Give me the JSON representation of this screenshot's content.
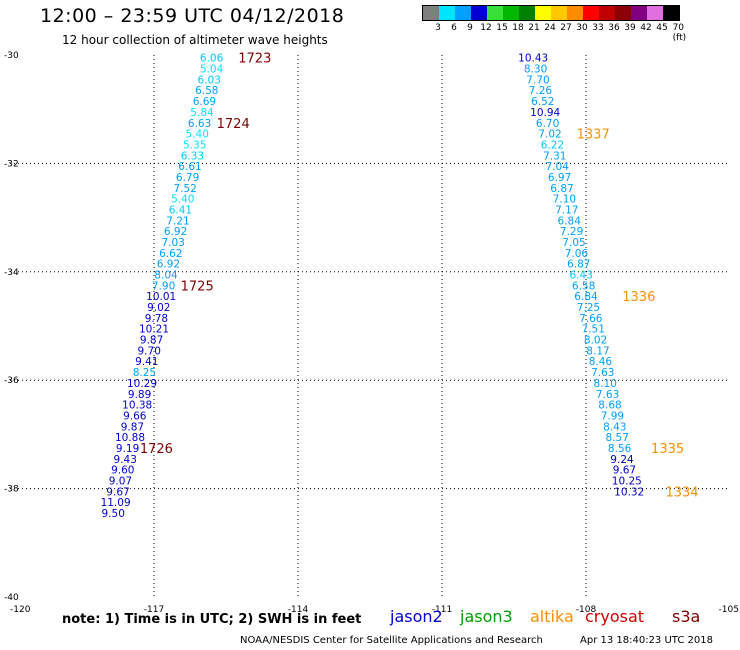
{
  "header": {
    "title": "12:00 – 23:59 UTC 04/12/2018",
    "subtitle": "12 hour collection of altimeter wave heights"
  },
  "color_scale": {
    "labels": [
      "3",
      "6",
      "9",
      "12",
      "15",
      "18",
      "21",
      "24",
      "27",
      "30",
      "33",
      "36",
      "39",
      "42",
      "45",
      "70 (ft)"
    ],
    "colors": [
      "#7f7f7f",
      "#00e5ff",
      "#00a0ff",
      "#0000d0",
      "#38e038",
      "#00b800",
      "#008000",
      "#ffff00",
      "#ffc800",
      "#ff8c00",
      "#ff0000",
      "#c00000",
      "#8b0000",
      "#800080",
      "#e070e0",
      "#000000"
    ]
  },
  "footer": {
    "note": "note: 1) Time is in UTC; 2) SWH is in feet",
    "credit": "NOAA/NESDIS Center for Satellite Applications and Research",
    "timestamp": "Apr 13 18:40:23 UTC 2018"
  },
  "legend": [
    {
      "name": "jason2",
      "color": "#0000d0"
    },
    {
      "name": "jason3",
      "color": "#00a000"
    },
    {
      "name": "altika",
      "color": "#ff9000"
    },
    {
      "name": "cryosat",
      "color": "#d00000"
    },
    {
      "name": "s3a",
      "color": "#800000"
    }
  ],
  "chart_data": {
    "type": "scatter",
    "xlim": [
      -120,
      -105
    ],
    "ylim": [
      -40,
      -30
    ],
    "x_ticks": [
      "-120",
      "-117",
      "-114",
      "-111",
      "-108",
      "-105"
    ],
    "y_ticks": [
      "-30",
      "-32",
      "-34",
      "-36",
      "-38",
      "-40"
    ],
    "grid": true,
    "track_a": [
      {
        "lon": -115.8,
        "lat": -30.05,
        "v": "6.06",
        "c": "#00c8ff"
      },
      {
        "lon": -115.8,
        "lat": -30.25,
        "v": "5.04",
        "c": "#00e5ff"
      },
      {
        "lon": -115.85,
        "lat": -30.45,
        "v": "6.03",
        "c": "#00c8ff"
      },
      {
        "lon": -115.9,
        "lat": -30.65,
        "v": "6.58",
        "c": "#00a0ff"
      },
      {
        "lon": -115.95,
        "lat": -30.85,
        "v": "6.69",
        "c": "#00a0ff"
      },
      {
        "lon": -116.0,
        "lat": -31.05,
        "v": "5.84",
        "c": "#00e5ff"
      },
      {
        "lon": -116.05,
        "lat": -31.25,
        "v": "6.63",
        "c": "#00a0ff"
      },
      {
        "lon": -116.1,
        "lat": -31.45,
        "v": "5.40",
        "c": "#00e5ff"
      },
      {
        "lon": -116.15,
        "lat": -31.65,
        "v": "5.35",
        "c": "#00e5ff"
      },
      {
        "lon": -116.2,
        "lat": -31.85,
        "v": "6.33",
        "c": "#00c8ff"
      },
      {
        "lon": -116.25,
        "lat": -32.05,
        "v": "6.61",
        "c": "#00a0ff"
      },
      {
        "lon": -116.3,
        "lat": -32.25,
        "v": "6.79",
        "c": "#00a0ff"
      },
      {
        "lon": -116.35,
        "lat": -32.45,
        "v": "7.52",
        "c": "#00a0ff"
      },
      {
        "lon": -116.4,
        "lat": -32.65,
        "v": "5.40",
        "c": "#00e5ff"
      },
      {
        "lon": -116.45,
        "lat": -32.85,
        "v": "6.41",
        "c": "#00c8ff"
      },
      {
        "lon": -116.5,
        "lat": -33.05,
        "v": "7.21",
        "c": "#00a0ff"
      },
      {
        "lon": -116.55,
        "lat": -33.25,
        "v": "6.92",
        "c": "#00a0ff"
      },
      {
        "lon": -116.6,
        "lat": -33.45,
        "v": "7.03",
        "c": "#00a0ff"
      },
      {
        "lon": -116.65,
        "lat": -33.65,
        "v": "6.62",
        "c": "#00a0ff"
      },
      {
        "lon": -116.7,
        "lat": -33.85,
        "v": "6.92",
        "c": "#00a0ff"
      },
      {
        "lon": -116.75,
        "lat": -34.05,
        "v": "8.04",
        "c": "#00a0ff"
      },
      {
        "lon": -116.8,
        "lat": -34.25,
        "v": "7.90",
        "c": "#00a0ff"
      },
      {
        "lon": -116.85,
        "lat": -34.45,
        "v": "10.01",
        "c": "#0000d0"
      },
      {
        "lon": -116.9,
        "lat": -34.65,
        "v": "9.02",
        "c": "#0000d0"
      },
      {
        "lon": -116.95,
        "lat": -34.85,
        "v": "9.78",
        "c": "#0000d0"
      },
      {
        "lon": -117.0,
        "lat": -35.05,
        "v": "10.21",
        "c": "#0000d0"
      },
      {
        "lon": -117.05,
        "lat": -35.25,
        "v": "9.87",
        "c": "#0000d0"
      },
      {
        "lon": -117.1,
        "lat": -35.45,
        "v": "9.70",
        "c": "#0000d0"
      },
      {
        "lon": -117.15,
        "lat": -35.65,
        "v": "9.41",
        "c": "#0000d0"
      },
      {
        "lon": -117.2,
        "lat": -35.85,
        "v": "8.25",
        "c": "#00a0ff"
      },
      {
        "lon": -117.25,
        "lat": -36.05,
        "v": "10.29",
        "c": "#0000d0"
      },
      {
        "lon": -117.3,
        "lat": -36.25,
        "v": "9.89",
        "c": "#0000d0"
      },
      {
        "lon": -117.35,
        "lat": -36.45,
        "v": "10.38",
        "c": "#0000d0"
      },
      {
        "lon": -117.4,
        "lat": -36.65,
        "v": "9.66",
        "c": "#0000d0"
      },
      {
        "lon": -117.45,
        "lat": -36.85,
        "v": "9.87",
        "c": "#0000d0"
      },
      {
        "lon": -117.5,
        "lat": -37.05,
        "v": "10.88",
        "c": "#0000d0"
      },
      {
        "lon": -117.55,
        "lat": -37.25,
        "v": "9.19",
        "c": "#0000d0"
      },
      {
        "lon": -117.6,
        "lat": -37.45,
        "v": "9.43",
        "c": "#0000d0"
      },
      {
        "lon": -117.65,
        "lat": -37.65,
        "v": "9.60",
        "c": "#0000d0"
      },
      {
        "lon": -117.7,
        "lat": -37.85,
        "v": "9.07",
        "c": "#0000d0"
      },
      {
        "lon": -117.75,
        "lat": -38.05,
        "v": "9.67",
        "c": "#0000d0"
      },
      {
        "lon": -117.8,
        "lat": -38.25,
        "v": "11.09",
        "c": "#0000d0"
      },
      {
        "lon": -117.85,
        "lat": -38.45,
        "v": "9.50",
        "c": "#0000d0"
      }
    ],
    "track_b": [
      {
        "lon": -109.1,
        "lat": -30.05,
        "v": "10.43",
        "c": "#0000d0"
      },
      {
        "lon": -109.05,
        "lat": -30.25,
        "v": "8.30",
        "c": "#00a0ff"
      },
      {
        "lon": -109.0,
        "lat": -30.45,
        "v": "7.70",
        "c": "#00a0ff"
      },
      {
        "lon": -108.95,
        "lat": -30.65,
        "v": "7.26",
        "c": "#00a0ff"
      },
      {
        "lon": -108.9,
        "lat": -30.85,
        "v": "6.52",
        "c": "#00a0ff"
      },
      {
        "lon": -108.85,
        "lat": -31.05,
        "v": "10.94",
        "c": "#0000d0"
      },
      {
        "lon": -108.8,
        "lat": -31.25,
        "v": "6.70",
        "c": "#00a0ff"
      },
      {
        "lon": -108.75,
        "lat": -31.45,
        "v": "7.02",
        "c": "#00a0ff"
      },
      {
        "lon": -108.7,
        "lat": -31.65,
        "v": "6.22",
        "c": "#00c8ff"
      },
      {
        "lon": -108.65,
        "lat": -31.85,
        "v": "7.31",
        "c": "#00a0ff"
      },
      {
        "lon": -108.6,
        "lat": -32.05,
        "v": "7.04",
        "c": "#00a0ff"
      },
      {
        "lon": -108.55,
        "lat": -32.25,
        "v": "6.97",
        "c": "#00a0ff"
      },
      {
        "lon": -108.5,
        "lat": -32.45,
        "v": "6.87",
        "c": "#00a0ff"
      },
      {
        "lon": -108.45,
        "lat": -32.65,
        "v": "7.10",
        "c": "#00a0ff"
      },
      {
        "lon": -108.4,
        "lat": -32.85,
        "v": "7.17",
        "c": "#00a0ff"
      },
      {
        "lon": -108.35,
        "lat": -33.05,
        "v": "6.84",
        "c": "#00a0ff"
      },
      {
        "lon": -108.3,
        "lat": -33.25,
        "v": "7.29",
        "c": "#00a0ff"
      },
      {
        "lon": -108.25,
        "lat": -33.45,
        "v": "7.05",
        "c": "#00a0ff"
      },
      {
        "lon": -108.2,
        "lat": -33.65,
        "v": "7.06",
        "c": "#00a0ff"
      },
      {
        "lon": -108.15,
        "lat": -33.85,
        "v": "6.87",
        "c": "#00a0ff"
      },
      {
        "lon": -108.1,
        "lat": -34.05,
        "v": "6.43",
        "c": "#00c8ff"
      },
      {
        "lon": -108.05,
        "lat": -34.25,
        "v": "6.58",
        "c": "#00a0ff"
      },
      {
        "lon": -108.0,
        "lat": -34.45,
        "v": "6.84",
        "c": "#00a0ff"
      },
      {
        "lon": -107.95,
        "lat": -34.65,
        "v": "7.25",
        "c": "#00a0ff"
      },
      {
        "lon": -107.9,
        "lat": -34.85,
        "v": "7.66",
        "c": "#00a0ff"
      },
      {
        "lon": -107.85,
        "lat": -35.05,
        "v": "7.51",
        "c": "#00a0ff"
      },
      {
        "lon": -107.8,
        "lat": -35.25,
        "v": "8.02",
        "c": "#00a0ff"
      },
      {
        "lon": -107.75,
        "lat": -35.45,
        "v": "8.17",
        "c": "#00a0ff"
      },
      {
        "lon": -107.7,
        "lat": -35.65,
        "v": "8.46",
        "c": "#00a0ff"
      },
      {
        "lon": -107.65,
        "lat": -35.85,
        "v": "7.63",
        "c": "#00a0ff"
      },
      {
        "lon": -107.6,
        "lat": -36.05,
        "v": "8.10",
        "c": "#00a0ff"
      },
      {
        "lon": -107.55,
        "lat": -36.25,
        "v": "7.63",
        "c": "#00a0ff"
      },
      {
        "lon": -107.5,
        "lat": -36.45,
        "v": "8.68",
        "c": "#00a0ff"
      },
      {
        "lon": -107.45,
        "lat": -36.65,
        "v": "7.99",
        "c": "#00a0ff"
      },
      {
        "lon": -107.4,
        "lat": -36.85,
        "v": "8.43",
        "c": "#00a0ff"
      },
      {
        "lon": -107.35,
        "lat": -37.05,
        "v": "8.57",
        "c": "#00a0ff"
      },
      {
        "lon": -107.3,
        "lat": -37.25,
        "v": "8.56",
        "c": "#00a0ff"
      },
      {
        "lon": -107.25,
        "lat": -37.45,
        "v": "9.24",
        "c": "#0000d0"
      },
      {
        "lon": -107.2,
        "lat": -37.65,
        "v": "9.67",
        "c": "#0000d0"
      },
      {
        "lon": -107.15,
        "lat": -37.85,
        "v": "10.25",
        "c": "#0000d0"
      },
      {
        "lon": -107.1,
        "lat": -38.05,
        "v": "10.32",
        "c": "#0000d0"
      }
    ],
    "time_labels": [
      {
        "lon": -114.9,
        "lat": -30.05,
        "v": "1723",
        "c": "#800000"
      },
      {
        "lon": -115.35,
        "lat": -31.25,
        "v": "1724",
        "c": "#800000"
      },
      {
        "lon": -116.1,
        "lat": -34.25,
        "v": "1725",
        "c": "#800000"
      },
      {
        "lon": -116.95,
        "lat": -37.25,
        "v": "1726",
        "c": "#800000"
      },
      {
        "lon": -107.85,
        "lat": -31.45,
        "v": "1337",
        "c": "#ff9000"
      },
      {
        "lon": -106.9,
        "lat": -34.45,
        "v": "1336",
        "c": "#ff9000"
      },
      {
        "lon": -106.3,
        "lat": -37.25,
        "v": "1335",
        "c": "#ff9000"
      },
      {
        "lon": -106.0,
        "lat": -38.05,
        "v": "1334",
        "c": "#ff9000"
      }
    ]
  }
}
